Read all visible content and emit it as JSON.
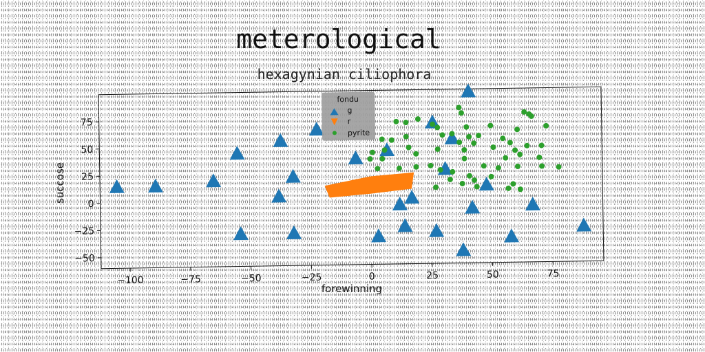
{
  "chart_data": {
    "type": "scatter",
    "suptitle": "meterological",
    "title": "hexagynian ciliophora",
    "xlabel": "forewinning",
    "ylabel": "succose",
    "xlim": [
      -112,
      96
    ],
    "ylim": [
      -60,
      100
    ],
    "xticks": [
      -100,
      -75,
      -50,
      -25,
      0,
      25,
      50,
      75
    ],
    "yticks": [
      -50,
      -25,
      0,
      25,
      50,
      75
    ],
    "tick_labels_x": [
      "−100",
      "−75",
      "−50",
      "−25",
      "0",
      "25",
      "50",
      "75"
    ],
    "tick_labels_y": [
      "−50",
      "−25",
      "0",
      "25",
      "50",
      "75"
    ],
    "legend": {
      "title": "fondu",
      "position": "top-center",
      "entries": [
        "g",
        "r",
        "pyrite"
      ]
    },
    "series": [
      {
        "name": "g",
        "marker": "triangle",
        "color": "#1f77b4",
        "points": [
          [
            41,
            98
          ],
          [
            -22,
            65
          ],
          [
            26,
            70
          ],
          [
            34,
            55
          ],
          [
            -37,
            55
          ],
          [
            -55,
            44
          ],
          [
            7,
            45
          ],
          [
            -6,
            38
          ],
          [
            31,
            27
          ],
          [
            -32,
            22
          ],
          [
            -65,
            19
          ],
          [
            -89,
            15
          ],
          [
            -105,
            15
          ],
          [
            48,
            12
          ],
          [
            -38,
            4
          ],
          [
            17,
            1
          ],
          [
            12,
            -5
          ],
          [
            42,
            -9
          ],
          [
            67,
            -7
          ],
          [
            14,
            -25
          ],
          [
            -54,
            -30
          ],
          [
            -32,
            -30
          ],
          [
            27,
            -30
          ],
          [
            3,
            -34
          ],
          [
            88,
            -27
          ],
          [
            58,
            -36
          ],
          [
            38,
            -48
          ]
        ]
      },
      {
        "name": "r",
        "marker": "polygon",
        "color": "#ff7f0e",
        "polygon": [
          [
            -19,
            13
          ],
          [
            -17,
            2
          ],
          [
            0,
            5
          ],
          [
            17,
            9
          ],
          [
            18,
            24
          ],
          [
            0,
            21
          ]
        ]
      },
      {
        "name": "pyrite",
        "marker": "circle",
        "color": "#2ca02c",
        "points": [
          [
            37,
            83
          ],
          [
            38,
            78
          ],
          [
            64,
            78
          ],
          [
            67,
            74
          ],
          [
            66,
            76
          ],
          [
            20,
            73
          ],
          [
            15,
            70
          ],
          [
            11,
            71
          ],
          [
            26,
            68
          ],
          [
            28,
            65
          ],
          [
            40,
            65
          ],
          [
            50,
            66
          ],
          [
            61,
            62
          ],
          [
            73,
            65
          ],
          [
            30,
            58
          ],
          [
            34,
            59
          ],
          [
            41,
            56
          ],
          [
            45,
            57
          ],
          [
            55,
            54
          ],
          [
            5,
            55
          ],
          [
            9,
            54
          ],
          [
            15,
            57
          ],
          [
            37,
            51
          ],
          [
            43,
            50
          ],
          [
            58,
            50
          ],
          [
            65,
            47
          ],
          [
            71,
            47
          ],
          [
            1,
            43
          ],
          [
            6,
            45
          ],
          [
            16,
            47
          ],
          [
            19,
            41
          ],
          [
            28,
            45
          ],
          [
            39,
            44
          ],
          [
            51,
            46
          ],
          [
            60,
            43
          ],
          [
            0,
            37
          ],
          [
            5,
            37
          ],
          [
            39,
            36
          ],
          [
            56,
            36
          ],
          [
            62,
            39
          ],
          [
            70,
            36
          ],
          [
            3,
            28
          ],
          [
            12,
            28
          ],
          [
            19,
            29
          ],
          [
            25,
            30
          ],
          [
            29,
            26
          ],
          [
            34,
            24
          ],
          [
            41,
            20
          ],
          [
            47,
            29
          ],
          [
            53,
            27
          ],
          [
            61,
            28
          ],
          [
            71,
            28
          ],
          [
            78,
            27
          ],
          [
            33,
            17
          ],
          [
            43,
            16
          ],
          [
            50,
            19
          ],
          [
            38,
            13
          ],
          [
            59,
            12
          ],
          [
            44,
            10
          ],
          [
            27,
            10
          ],
          [
            57,
            8
          ],
          [
            62,
            7
          ]
        ]
      }
    ]
  }
}
